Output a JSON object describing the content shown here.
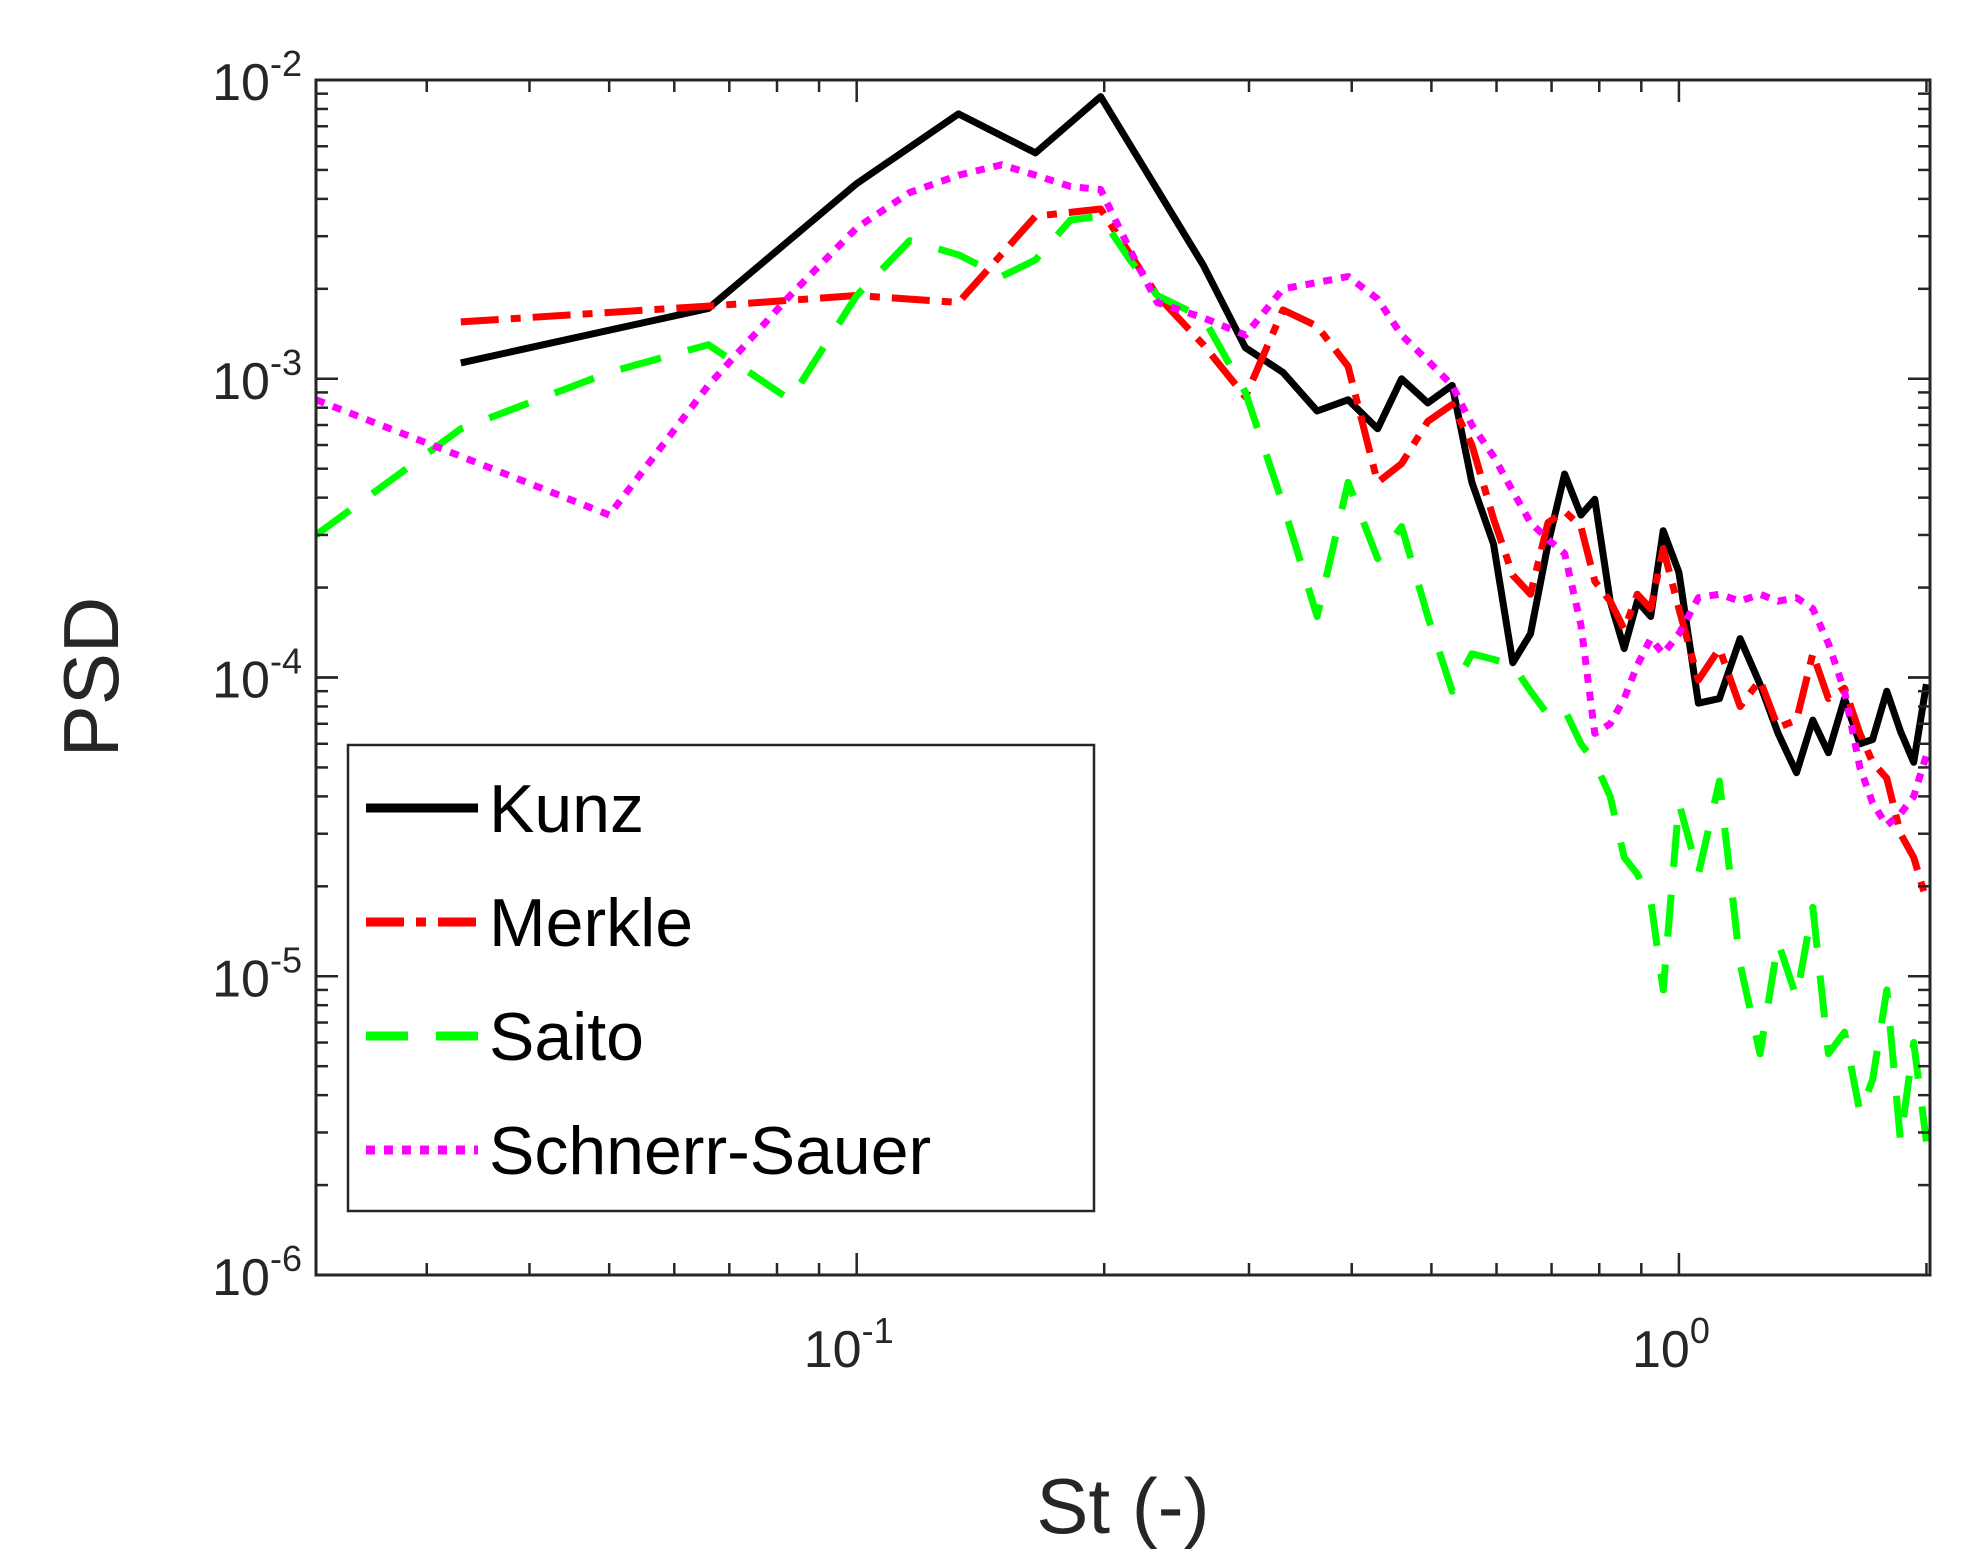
{
  "chart_data": {
    "type": "line",
    "title": "",
    "xlabel": "St (-)",
    "ylabel": "PSD",
    "xscale": "log",
    "yscale": "log",
    "xlim": [
      0.022,
      2.02
    ],
    "ylim": [
      1e-06,
      0.01
    ],
    "grid": false,
    "legend_position": "lower-left",
    "xticks": [
      {
        "value": 0.1,
        "base": "10",
        "exp": "-1"
      },
      {
        "value": 1,
        "base": "10",
        "exp": "0"
      }
    ],
    "yticks": [
      {
        "value": 0.01,
        "base": "10",
        "exp": "-2"
      },
      {
        "value": 0.001,
        "base": "10",
        "exp": "-3"
      },
      {
        "value": 0.0001,
        "base": "10",
        "exp": "-4"
      },
      {
        "value": 1e-05,
        "base": "10",
        "exp": "-5"
      },
      {
        "value": 1e-06,
        "base": "10",
        "exp": "-6"
      }
    ],
    "series": [
      {
        "name": "Kunz",
        "color": "#000000",
        "dash": "solid",
        "points": [
          [
            0.033,
            0.00113
          ],
          [
            0.066,
            0.00172
          ],
          [
            0.1,
            0.0045
          ],
          [
            0.133,
            0.0077
          ],
          [
            0.165,
            0.0057
          ],
          [
            0.198,
            0.0088
          ],
          [
            0.232,
            0.0043
          ],
          [
            0.264,
            0.0024
          ],
          [
            0.297,
            0.00127
          ],
          [
            0.33,
            0.00105
          ],
          [
            0.363,
            0.00078
          ],
          [
            0.396,
            0.00085
          ],
          [
            0.43,
            0.00068
          ],
          [
            0.46,
            0.001
          ],
          [
            0.495,
            0.00083
          ],
          [
            0.53,
            0.00095
          ],
          [
            0.56,
            0.00045
          ],
          [
            0.595,
            0.00028
          ],
          [
            0.628,
            0.000112
          ],
          [
            0.66,
            0.00014
          ],
          [
            0.693,
            0.00028
          ],
          [
            0.726,
            0.00048
          ],
          [
            0.76,
            0.00035
          ],
          [
            0.79,
            0.000395
          ],
          [
            0.825,
            0.00018
          ],
          [
            0.858,
            0.000125
          ],
          [
            0.89,
            0.00018
          ],
          [
            0.924,
            0.00016
          ],
          [
            0.957,
            0.00031
          ],
          [
            1.0,
            0.000225
          ],
          [
            1.056,
            8.2e-05
          ],
          [
            1.12,
            8.5e-05
          ],
          [
            1.187,
            0.000135
          ],
          [
            1.255,
            9.5e-05
          ],
          [
            1.32,
            6.5e-05
          ],
          [
            1.39,
            4.8e-05
          ],
          [
            1.455,
            7.2e-05
          ],
          [
            1.52,
            5.6e-05
          ],
          [
            1.59,
            8.5e-05
          ],
          [
            1.66,
            6e-05
          ],
          [
            1.72,
            6.2e-05
          ],
          [
            1.79,
            9e-05
          ],
          [
            1.86,
            6.6e-05
          ],
          [
            1.93,
            5.2e-05
          ],
          [
            2.0,
            9.5e-05
          ]
        ]
      },
      {
        "name": "Merkle",
        "color": "#ff0000",
        "dash": "dashdot",
        "points": [
          [
            0.033,
            0.00155
          ],
          [
            0.066,
            0.00175
          ],
          [
            0.1,
            0.0019
          ],
          [
            0.133,
            0.0018
          ],
          [
            0.165,
            0.0035
          ],
          [
            0.198,
            0.0037
          ],
          [
            0.232,
            0.0019
          ],
          [
            0.264,
            0.0013
          ],
          [
            0.297,
            0.00087
          ],
          [
            0.33,
            0.0017
          ],
          [
            0.363,
            0.0015
          ],
          [
            0.396,
            0.0011
          ],
          [
            0.43,
            0.00045
          ],
          [
            0.46,
            0.00052
          ],
          [
            0.495,
            0.00072
          ],
          [
            0.53,
            0.00082
          ],
          [
            0.56,
            0.0006
          ],
          [
            0.595,
            0.00034
          ],
          [
            0.628,
            0.00022
          ],
          [
            0.66,
            0.00019
          ],
          [
            0.693,
            0.00033
          ],
          [
            0.726,
            0.00036
          ],
          [
            0.76,
            0.00032
          ],
          [
            0.79,
            0.00021
          ],
          [
            0.825,
            0.00018
          ],
          [
            0.858,
            0.000145
          ],
          [
            0.89,
            0.00019
          ],
          [
            0.924,
            0.00017
          ],
          [
            0.957,
            0.00027
          ],
          [
            1.0,
            0.00017
          ],
          [
            1.056,
            9.8e-05
          ],
          [
            1.12,
            0.000125
          ],
          [
            1.187,
            8e-05
          ],
          [
            1.255,
            9.8e-05
          ],
          [
            1.32,
            6.8e-05
          ],
          [
            1.39,
            7.2e-05
          ],
          [
            1.455,
            0.00012
          ],
          [
            1.52,
            8.5e-05
          ],
          [
            1.59,
            9.2e-05
          ],
          [
            1.66,
            6.5e-05
          ],
          [
            1.72,
            5.2e-05
          ],
          [
            1.79,
            4.6e-05
          ],
          [
            1.86,
            3e-05
          ],
          [
            1.93,
            2.5e-05
          ],
          [
            2.0,
            1.8e-05
          ]
        ]
      },
      {
        "name": "Saito",
        "color": "#00ff00",
        "dash": "dash",
        "points": [
          [
            0.022,
            0.0003
          ],
          [
            0.033,
            0.00068
          ],
          [
            0.05,
            0.00105
          ],
          [
            0.066,
            0.0013
          ],
          [
            0.083,
            0.00085
          ],
          [
            0.1,
            0.0019
          ],
          [
            0.116,
            0.0029
          ],
          [
            0.133,
            0.0026
          ],
          [
            0.15,
            0.0022
          ],
          [
            0.165,
            0.0025
          ],
          [
            0.182,
            0.0034
          ],
          [
            0.198,
            0.0035
          ],
          [
            0.215,
            0.0025
          ],
          [
            0.232,
            0.0019
          ],
          [
            0.264,
            0.0016
          ],
          [
            0.297,
            0.0009
          ],
          [
            0.33,
            0.00038
          ],
          [
            0.363,
            0.00016
          ],
          [
            0.396,
            0.00045
          ],
          [
            0.43,
            0.00025
          ],
          [
            0.46,
            0.00032
          ],
          [
            0.495,
            0.00016
          ],
          [
            0.53,
            9e-05
          ],
          [
            0.56,
            0.00012
          ],
          [
            0.595,
            0.000115
          ],
          [
            0.628,
            0.00011
          ],
          [
            0.66,
            9e-05
          ],
          [
            0.693,
            7.5e-05
          ],
          [
            0.726,
            7.8e-05
          ],
          [
            0.76,
            6e-05
          ],
          [
            0.79,
            5.2e-05
          ],
          [
            0.825,
            4e-05
          ],
          [
            0.858,
            2.5e-05
          ],
          [
            0.89,
            2.2e-05
          ],
          [
            0.924,
            1.8e-05
          ],
          [
            0.957,
            9e-06
          ],
          [
            1.0,
            3.8e-05
          ],
          [
            1.056,
            2.2e-05
          ],
          [
            1.12,
            4.5e-05
          ],
          [
            1.187,
            1.1e-05
          ],
          [
            1.255,
            5.5e-06
          ],
          [
            1.32,
            1.3e-05
          ],
          [
            1.39,
            8.5e-06
          ],
          [
            1.455,
            1.7e-05
          ],
          [
            1.52,
            5.5e-06
          ],
          [
            1.59,
            6.5e-06
          ],
          [
            1.66,
            3.5e-06
          ],
          [
            1.72,
            4.5e-06
          ],
          [
            1.79,
            9e-06
          ],
          [
            1.86,
            2.8e-06
          ],
          [
            1.93,
            6e-06
          ],
          [
            2.0,
            2.8e-06
          ]
        ]
      },
      {
        "name": "Schnerr-Sauer",
        "color": "#ff00ff",
        "dash": "dot",
        "points": [
          [
            0.022,
            0.00085
          ],
          [
            0.033,
            0.00055
          ],
          [
            0.05,
            0.00035
          ],
          [
            0.066,
            0.00095
          ],
          [
            0.083,
            0.0019
          ],
          [
            0.1,
            0.0032
          ],
          [
            0.116,
            0.0042
          ],
          [
            0.133,
            0.0048
          ],
          [
            0.15,
            0.0052
          ],
          [
            0.165,
            0.0048
          ],
          [
            0.182,
            0.0044
          ],
          [
            0.198,
            0.0043
          ],
          [
            0.215,
            0.0027
          ],
          [
            0.232,
            0.0018
          ],
          [
            0.264,
            0.0016
          ],
          [
            0.297,
            0.0014
          ],
          [
            0.33,
            0.002
          ],
          [
            0.363,
            0.0021
          ],
          [
            0.396,
            0.0022
          ],
          [
            0.43,
            0.00185
          ],
          [
            0.46,
            0.0014
          ],
          [
            0.495,
            0.00115
          ],
          [
            0.53,
            0.00095
          ],
          [
            0.56,
            0.0007
          ],
          [
            0.595,
            0.00055
          ],
          [
            0.628,
            0.00042
          ],
          [
            0.66,
            0.00033
          ],
          [
            0.693,
            0.00029
          ],
          [
            0.726,
            0.00026
          ],
          [
            0.76,
            0.00015
          ],
          [
            0.79,
            6.5e-05
          ],
          [
            0.825,
            7e-05
          ],
          [
            0.858,
            8.5e-05
          ],
          [
            0.89,
            0.00011
          ],
          [
            0.924,
            0.000135
          ],
          [
            0.957,
            0.00012
          ],
          [
            1.0,
            0.00014
          ],
          [
            1.056,
            0.000185
          ],
          [
            1.12,
            0.00019
          ],
          [
            1.187,
            0.00018
          ],
          [
            1.255,
            0.00019
          ],
          [
            1.32,
            0.00018
          ],
          [
            1.39,
            0.000185
          ],
          [
            1.455,
            0.00017
          ],
          [
            1.52,
            0.00013
          ],
          [
            1.59,
            9e-05
          ],
          [
            1.66,
            5e-05
          ],
          [
            1.72,
            3.8e-05
          ],
          [
            1.79,
            3.2e-05
          ],
          [
            1.86,
            3.5e-05
          ],
          [
            1.93,
            4e-05
          ],
          [
            2.0,
            5.5e-05
          ]
        ]
      }
    ]
  }
}
